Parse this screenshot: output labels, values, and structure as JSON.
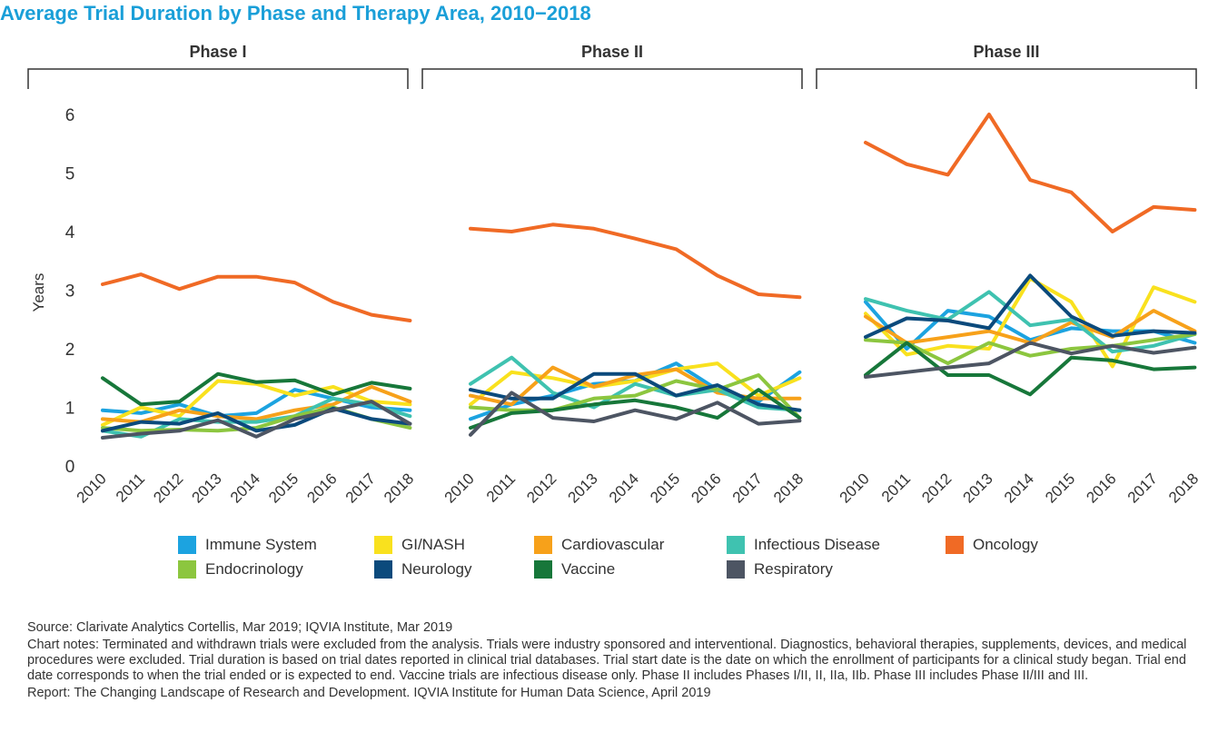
{
  "title": "Average Trial Duration by Phase and Therapy Area, 2010−2018",
  "legend": [
    {
      "label": "Immune System",
      "color": "#1ca3e0"
    },
    {
      "label": "GI/NASH",
      "color": "#f9e11e"
    },
    {
      "label": "Cardiovascular",
      "color": "#f7a11a"
    },
    {
      "label": "Infectious Disease",
      "color": "#3fc2b0"
    },
    {
      "label": "Oncology",
      "color": "#f06a25"
    },
    {
      "label": "Endocrinology",
      "color": "#8cc63f"
    },
    {
      "label": "Neurology",
      "color": "#0b4a7c"
    },
    {
      "label": "Vaccine",
      "color": "#17773a"
    },
    {
      "label": "Respiratory",
      "color": "#4d5563"
    }
  ],
  "chart_data": {
    "type": "line",
    "ylabel": "Years",
    "ylim": [
      0,
      6
    ],
    "yticks": [
      0,
      1,
      2,
      3,
      4,
      5,
      6
    ],
    "x": [
      "2010",
      "2011",
      "2012",
      "2013",
      "2014",
      "2015",
      "2016",
      "2017",
      "2018"
    ],
    "panels": [
      {
        "title": "Phase I",
        "series": [
          {
            "name": "Immune System",
            "values": [
              0.95,
              0.9,
              1.05,
              0.85,
              0.9,
              1.3,
              1.15,
              1.0,
              0.95
            ]
          },
          {
            "name": "GI/NASH",
            "values": [
              0.7,
              1.0,
              0.85,
              1.45,
              1.4,
              1.2,
              1.35,
              1.1,
              1.05
            ]
          },
          {
            "name": "Cardiovascular",
            "values": [
              0.8,
              0.75,
              0.95,
              0.85,
              0.8,
              0.95,
              1.05,
              1.35,
              1.1
            ]
          },
          {
            "name": "Infectious Disease",
            "values": [
              0.6,
              0.5,
              0.8,
              0.75,
              0.75,
              0.85,
              1.15,
              1.05,
              0.85
            ]
          },
          {
            "name": "Oncology",
            "values": [
              3.1,
              3.27,
              3.02,
              3.23,
              3.23,
              3.13,
              2.8,
              2.58,
              2.48
            ]
          },
          {
            "name": "Endocrinology",
            "values": [
              0.65,
              0.6,
              0.62,
              0.6,
              0.65,
              0.85,
              1.0,
              0.8,
              0.65
            ]
          },
          {
            "name": "Neurology",
            "values": [
              0.6,
              0.75,
              0.72,
              0.9,
              0.6,
              0.7,
              0.98,
              0.8,
              0.72
            ]
          },
          {
            "name": "Vaccine",
            "values": [
              1.5,
              1.05,
              1.1,
              1.57,
              1.43,
              1.46,
              1.22,
              1.42,
              1.32
            ]
          },
          {
            "name": "Respiratory",
            "values": [
              0.48,
              0.55,
              0.6,
              0.78,
              0.5,
              0.8,
              0.95,
              1.1,
              0.72
            ]
          }
        ]
      },
      {
        "title": "Phase II",
        "series": [
          {
            "name": "Immune System",
            "values": [
              0.8,
              1.05,
              1.2,
              1.4,
              1.45,
              1.75,
              1.3,
              1.1,
              1.6
            ]
          },
          {
            "name": "GI/NASH",
            "values": [
              1.05,
              1.6,
              1.5,
              1.35,
              1.45,
              1.65,
              1.75,
              1.2,
              1.5
            ]
          },
          {
            "name": "Cardiovascular",
            "values": [
              1.2,
              1.05,
              1.68,
              1.35,
              1.55,
              1.65,
              1.25,
              1.15,
              1.15
            ]
          },
          {
            "name": "Infectious Disease",
            "values": [
              1.4,
              1.85,
              1.25,
              1.0,
              1.4,
              1.2,
              1.3,
              1.0,
              0.95
            ]
          },
          {
            "name": "Oncology",
            "values": [
              4.05,
              4.0,
              4.12,
              4.05,
              3.88,
              3.7,
              3.25,
              2.93,
              2.88
            ]
          },
          {
            "name": "Endocrinology",
            "values": [
              1.0,
              0.95,
              0.95,
              1.15,
              1.2,
              1.45,
              1.3,
              1.55,
              0.82
            ]
          },
          {
            "name": "Neurology",
            "values": [
              1.3,
              1.15,
              1.15,
              1.57,
              1.57,
              1.2,
              1.38,
              1.05,
              0.95
            ]
          },
          {
            "name": "Vaccine",
            "values": [
              0.65,
              0.9,
              0.95,
              1.05,
              1.12,
              1.0,
              0.82,
              1.3,
              0.82
            ]
          },
          {
            "name": "Respiratory",
            "values": [
              0.53,
              1.25,
              0.82,
              0.76,
              0.95,
              0.8,
              1.08,
              0.72,
              0.77
            ]
          }
        ]
      },
      {
        "title": "Phase III",
        "series": [
          {
            "name": "Immune System",
            "values": [
              2.8,
              2.0,
              2.65,
              2.55,
              2.15,
              2.35,
              2.3,
              2.3,
              2.1
            ]
          },
          {
            "name": "GI/NASH",
            "values": [
              2.6,
              1.9,
              2.05,
              2.0,
              3.2,
              2.8,
              1.7,
              3.05,
              2.8
            ]
          },
          {
            "name": "Cardiovascular",
            "values": [
              2.55,
              2.1,
              2.2,
              2.3,
              2.1,
              2.45,
              2.2,
              2.65,
              2.3
            ]
          },
          {
            "name": "Infectious Disease",
            "values": [
              2.85,
              2.65,
              2.5,
              2.97,
              2.4,
              2.5,
              1.95,
              2.05,
              2.25
            ]
          },
          {
            "name": "Oncology",
            "values": [
              5.52,
              5.15,
              4.97,
              6.0,
              4.88,
              4.67,
              4.0,
              4.42,
              4.37
            ]
          },
          {
            "name": "Endocrinology",
            "values": [
              2.15,
              2.1,
              1.75,
              2.1,
              1.88,
              2.0,
              2.05,
              2.15,
              2.25
            ]
          },
          {
            "name": "Neurology",
            "values": [
              2.2,
              2.52,
              2.48,
              2.35,
              3.25,
              2.55,
              2.22,
              2.3,
              2.27
            ]
          },
          {
            "name": "Vaccine",
            "values": [
              1.55,
              2.1,
              1.55,
              1.55,
              1.22,
              1.85,
              1.8,
              1.65,
              1.68
            ]
          },
          {
            "name": "Respiratory",
            "values": [
              1.52,
              1.6,
              1.68,
              1.75,
              2.1,
              1.92,
              2.05,
              1.93,
              2.02
            ]
          }
        ]
      }
    ]
  },
  "notes": {
    "source": "Source: Clarivate Analytics Cortellis, Mar 2019; IQVIA Institute, Mar 2019",
    "chart_notes": "Chart notes: Terminated and withdrawn trials were excluded from the analysis. Trials were industry sponsored and interventional. Diagnostics, behavioral therapies, supplements, devices, and medical procedures were excluded. Trial duration is based on trial dates reported in clinical trial databases. Trial start date is the date on which the enrollment of participants for a clinical study began. Trial end date corresponds to when the trial ended or is expected to end. Vaccine trials are infectious disease only. Phase II includes Phases I/II, II, IIa, IIb. Phase III includes Phase II/III and III.",
    "report": "Report: The Changing Landscape of Research and Development. IQVIA Institute for Human Data Science, April 2019"
  }
}
